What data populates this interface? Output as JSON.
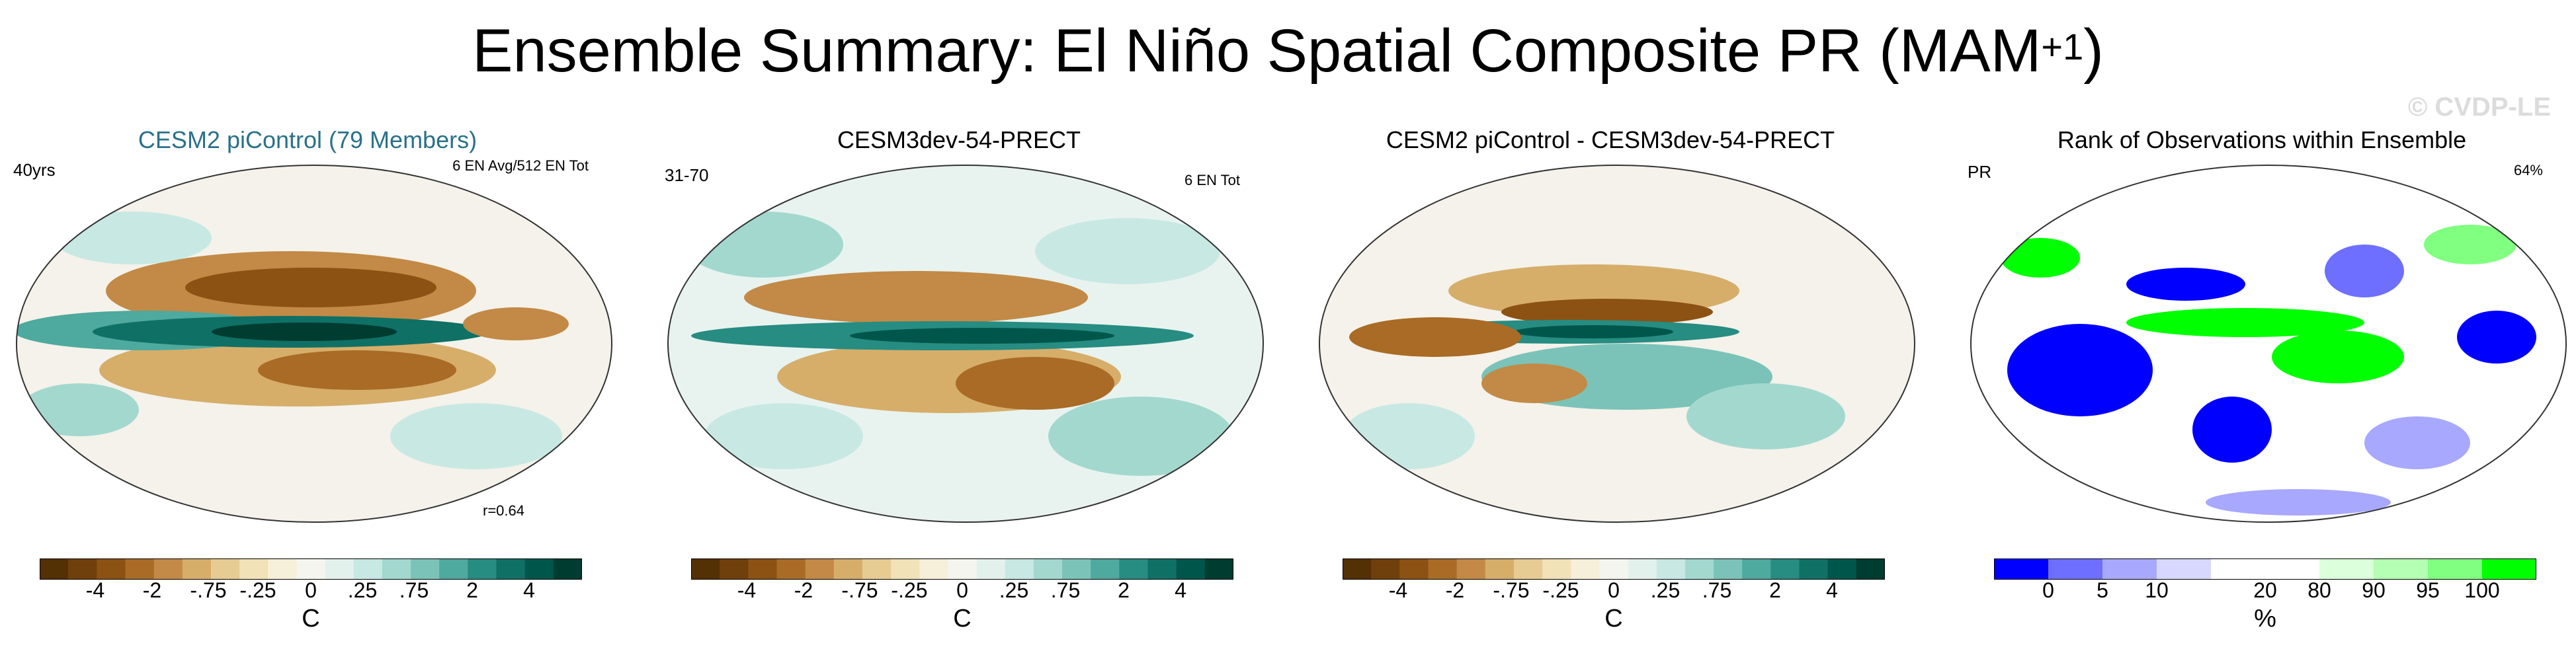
{
  "title": {
    "main": "Ensemble Summary: El Niño Spatial Composite PR (MAM",
    "sup": "+1",
    "close": ")"
  },
  "watermark": "© CVDP-LE",
  "panels": [
    {
      "title": "CESM2 piControl (79 Members)",
      "title_color": "#2a7189",
      "left": "40yrs",
      "right": "6 EN Avg/512 EN Tot",
      "r": "r=0.64",
      "unit": "C",
      "ticks": [
        "-4",
        "-2",
        "-.75",
        "-.25",
        "0",
        ".25",
        ".75",
        "2",
        "4"
      ]
    },
    {
      "title": "CESM3dev-54-PRECT",
      "title_color": "#000000",
      "left": "31-70",
      "right": "6 EN Tot",
      "r": "",
      "unit": "C",
      "ticks": [
        "-4",
        "-2",
        "-.75",
        "-.25",
        "0",
        ".25",
        ".75",
        "2",
        "4"
      ]
    },
    {
      "title": "CESM2 piControl - CESM3dev-54-PRECT",
      "title_color": "#000000",
      "left": "",
      "right": "",
      "r": "",
      "unit": "C",
      "ticks": [
        "-4",
        "-2",
        "-.75",
        "-.25",
        "0",
        ".25",
        ".75",
        "2",
        "4"
      ]
    },
    {
      "title": "Rank of Observations within Ensemble",
      "title_color": "#000000",
      "left": "PR",
      "right": "64%",
      "r": "",
      "unit": "%",
      "ticks": [
        "0",
        "5",
        "10",
        "20",
        "80",
        "90",
        "95",
        "100"
      ]
    }
  ],
  "colorbars": {
    "diverging": [
      "#543005",
      "#70400c",
      "#8c5213",
      "#a96b25",
      "#c28a46",
      "#d6ae6a",
      "#e6cb93",
      "#f1e2b8",
      "#f6efd9",
      "#f5f5f0",
      "#e3f1ed",
      "#c8e8e3",
      "#a3d8cf",
      "#7bc3b8",
      "#4ea99e",
      "#278c82",
      "#0f7066",
      "#01564b",
      "#003c30"
    ],
    "rank": [
      "#0000ff",
      "#6e6eff",
      "#a8a8ff",
      "#d8d8ff",
      "#ffffff",
      "#ffffff",
      "#dcffdc",
      "#b4ffb4",
      "#80ff80",
      "#00ff00"
    ]
  },
  "map_colors": {
    "ocean": "#f5f5f0",
    "land_line": "#555555"
  }
}
